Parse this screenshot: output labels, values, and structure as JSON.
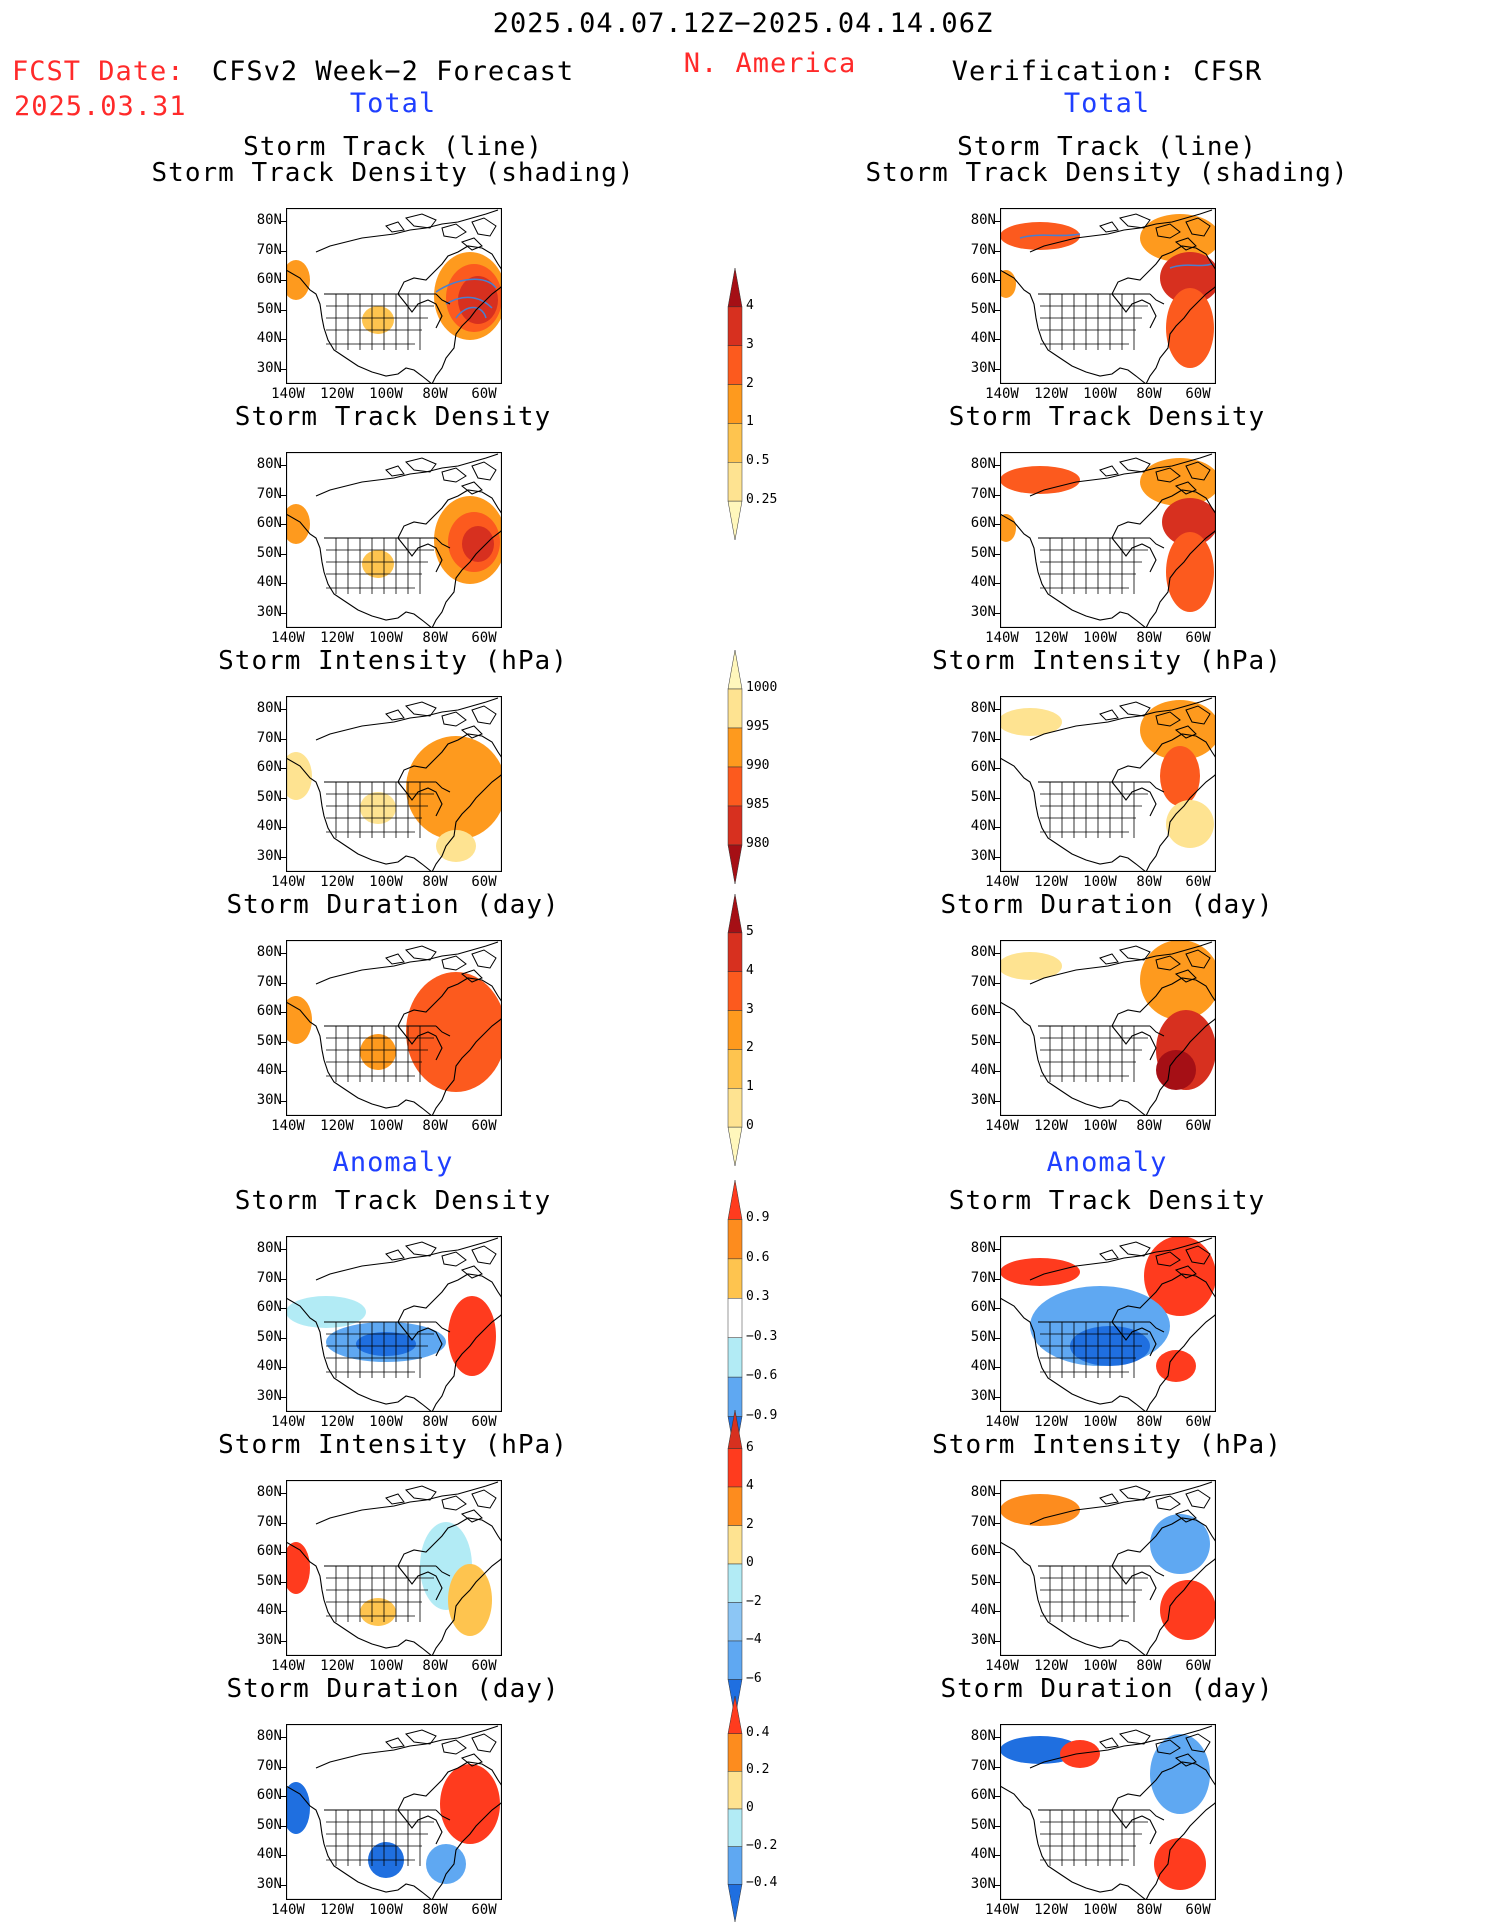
{
  "header": {
    "date_range": "2025.04.07.12Z−2025.04.14.06Z",
    "region": "N. America",
    "fcst_label": "FCST Date:",
    "fcst_date": "2025.03.31",
    "left_title": "CFSv2 Week−2 Forecast",
    "right_title": "Verification: CFSR",
    "total_label": "Total",
    "anomaly_label": "Anomaly"
  },
  "panel_titles": {
    "track_line": "Storm Track (line)",
    "track_shading": "Storm Track Density (shading)",
    "density": "Storm Track Density",
    "intensity": "Storm Intensity (hPa)",
    "duration": "Storm Duration (day)"
  },
  "axes": {
    "lat_ticks": [
      "80N",
      "70N",
      "60N",
      "50N",
      "40N",
      "30N"
    ],
    "lon_ticks": [
      "140W",
      "120W",
      "100W",
      "80W",
      "60W"
    ]
  },
  "colorbars": {
    "density_total": {
      "labels": [
        "4",
        "3",
        "2",
        "1",
        "0.5",
        "0.25"
      ],
      "colors": [
        "#a50f15",
        "#d7301f",
        "#fc5a1e",
        "#fe9a1e",
        "#fec44f",
        "#fee391",
        "#fff7bc"
      ]
    },
    "intensity_total": {
      "labels": [
        "1000",
        "995",
        "990",
        "985",
        "980"
      ],
      "colors": [
        "#fff7bc",
        "#fee391",
        "#fe9a1e",
        "#fc5a1e",
        "#d7301f",
        "#a50f15"
      ]
    },
    "duration_total": {
      "labels": [
        "5",
        "4",
        "3",
        "2",
        "1",
        "0"
      ],
      "colors": [
        "#a50f15",
        "#d7301f",
        "#fc5a1e",
        "#fe9a1e",
        "#fec44f",
        "#fee391",
        "#fff7bc"
      ]
    },
    "density_anom": {
      "labels": [
        "0.9",
        "0.6",
        "0.3",
        "−0.3",
        "−0.6",
        "−0.9"
      ],
      "colors": [
        "#ff3b1e",
        "#fd8c1e",
        "#fec44f",
        "#ffffff",
        "#b2ebf5",
        "#5fa8f2",
        "#1f6fe0"
      ]
    },
    "intensity_anom": {
      "labels": [
        "6",
        "4",
        "2",
        "0",
        "−2",
        "−4",
        "−6"
      ],
      "colors": [
        "#d7301f",
        "#ff3b1e",
        "#fd8c1e",
        "#fee391",
        "#b2ebf5",
        "#8cc6f5",
        "#5fa8f2",
        "#1f6fe0"
      ]
    },
    "duration_anom": {
      "labels": [
        "0.4",
        "0.2",
        "0",
        "−0.2",
        "−0.4"
      ],
      "colors": [
        "#ff3b1e",
        "#fd8c1e",
        "#fee391",
        "#b2ebf5",
        "#5fa8f2",
        "#1f6fe0"
      ]
    }
  },
  "colors": {
    "accent_red": "#ff2a2a",
    "accent_blue": "#1f3fff"
  }
}
